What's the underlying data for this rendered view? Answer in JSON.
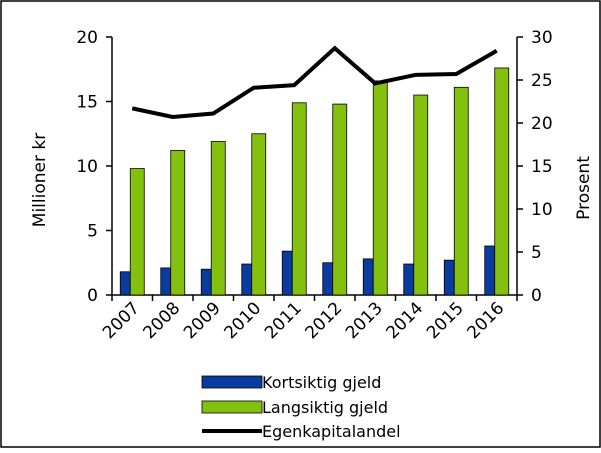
{
  "chart_data": {
    "type": "bar",
    "categories": [
      "2007",
      "2008",
      "2009",
      "2010",
      "2011",
      "2012",
      "2013",
      "2014",
      "2015",
      "2016"
    ],
    "series": [
      {
        "name": "Kortsiktig gjeld",
        "kind": "bar",
        "axis": "left",
        "color": "#0a3ca0",
        "values": [
          1.8,
          2.1,
          2.0,
          2.4,
          3.4,
          2.5,
          2.8,
          2.4,
          2.7,
          3.8
        ]
      },
      {
        "name": "Langsiktig gjeld",
        "kind": "bar",
        "axis": "left",
        "color": "#84c00e",
        "values": [
          9.8,
          11.2,
          11.9,
          12.5,
          14.9,
          14.8,
          16.6,
          15.5,
          16.1,
          17.6
        ]
      },
      {
        "name": "Egenkapitalandel",
        "kind": "line",
        "axis": "right",
        "color": "#000000",
        "values": [
          21.7,
          20.7,
          21.1,
          24.1,
          24.4,
          28.7,
          24.6,
          25.6,
          25.7,
          28.4
        ]
      }
    ],
    "ylabel": "Millioner kr",
    "y2label": "Prosent",
    "ylim": [
      0,
      20
    ],
    "y2lim": [
      0,
      30
    ],
    "yticks": [
      0,
      5,
      10,
      15,
      20
    ],
    "y2ticks": [
      0,
      5,
      10,
      15,
      20,
      25,
      30
    ],
    "grid": false,
    "legend_position": "bottom"
  }
}
